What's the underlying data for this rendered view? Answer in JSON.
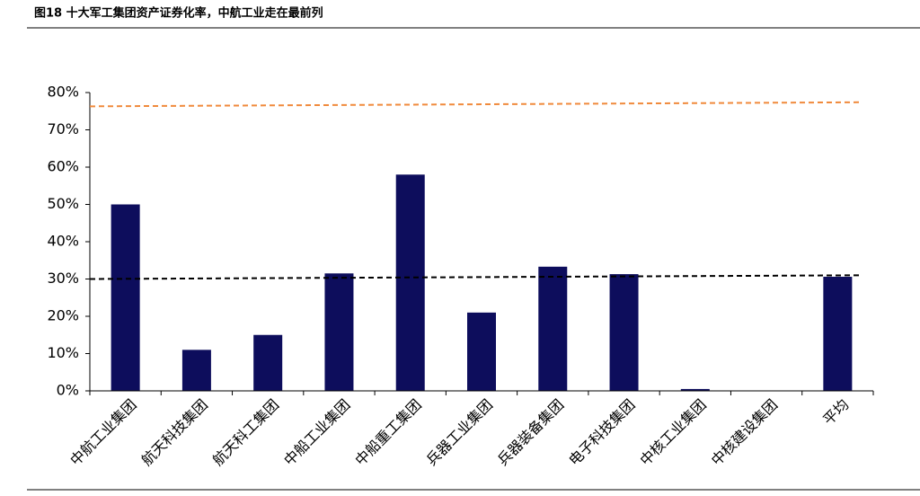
{
  "chart_data": {
    "type": "bar",
    "title": "图18 十大军工集团资产证券化率，中航工业走在最前列",
    "categories": [
      "中航工业集团",
      "航天科技集团",
      "航天科工集团",
      "中船工业集团",
      "中船重工集团",
      "兵器工业集团",
      "兵器装备集团",
      "电子科技集团",
      "中核工业集团",
      "中核建设集团",
      "平均"
    ],
    "values": [
      50,
      11,
      15,
      31.5,
      58,
      21,
      33.3,
      31.3,
      0.5,
      0,
      30.6
    ],
    "color": "#0d0d5c",
    "ylim": [
      0,
      80
    ],
    "yticks": [
      {
        "value": 0,
        "label": "0%"
      },
      {
        "value": 10,
        "label": "10%"
      },
      {
        "value": 20,
        "label": "20%"
      },
      {
        "value": 30,
        "label": "30%"
      },
      {
        "value": 40,
        "label": "40%"
      },
      {
        "value": 50,
        "label": "50%"
      },
      {
        "value": 60,
        "label": "60%"
      },
      {
        "value": 70,
        "label": "70%"
      },
      {
        "value": 80,
        "label": "80%"
      }
    ],
    "lines": [
      {
        "color": "#f08a3c",
        "values": [
          76.3,
          77.4
        ]
      },
      {
        "color": "#000000",
        "values": [
          30,
          31
        ]
      }
    ]
  }
}
